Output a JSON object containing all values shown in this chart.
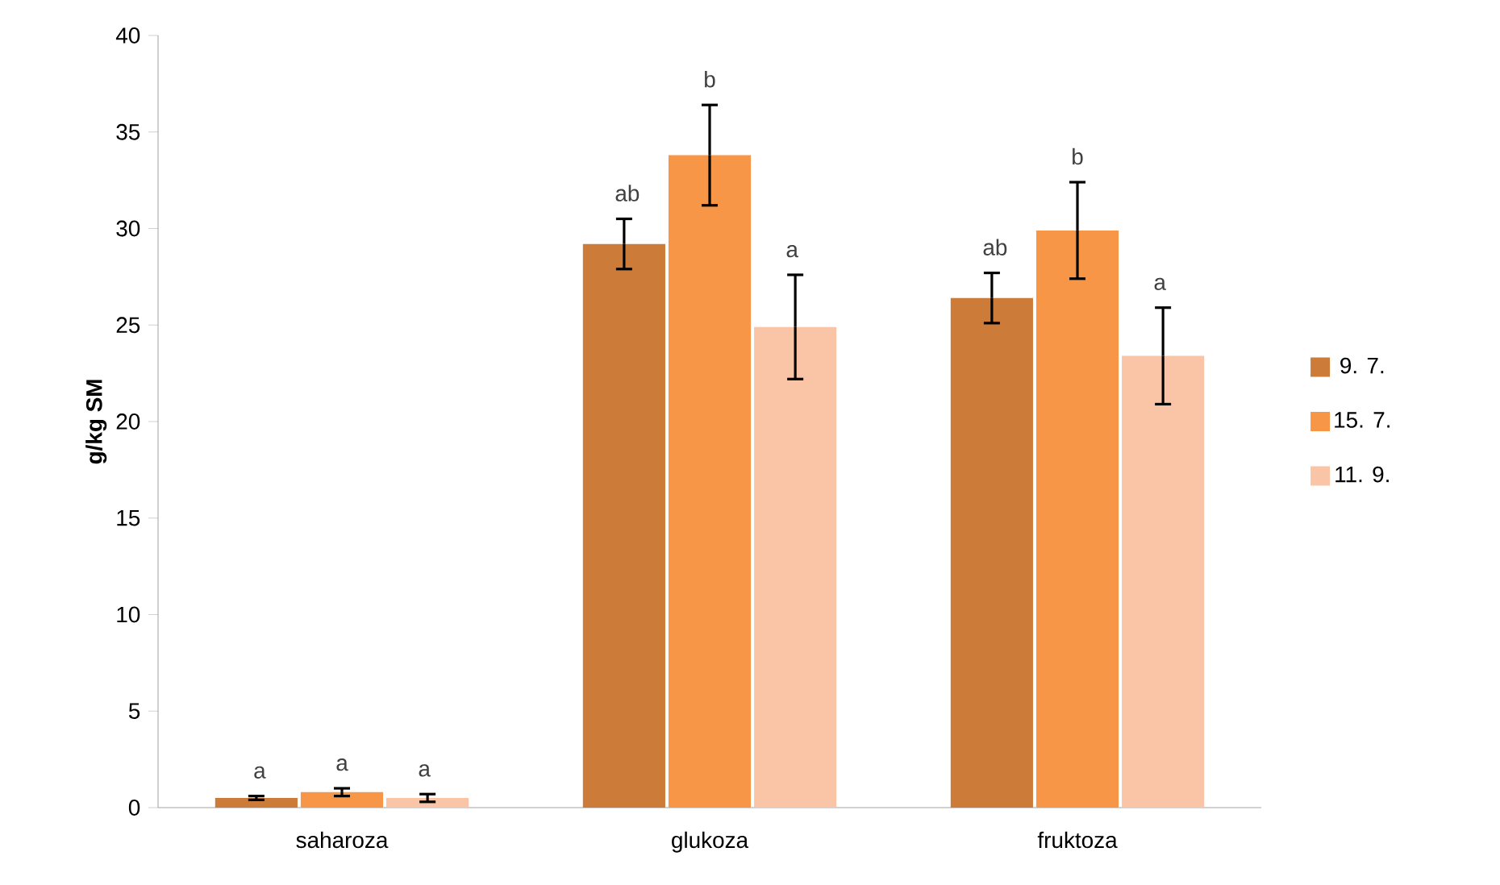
{
  "chart_data": {
    "type": "bar",
    "ylabel": "g/kg SM",
    "categories": [
      "saharoza",
      "glukoza",
      "fruktoza"
    ],
    "series": [
      {
        "name": "9. 7.",
        "color": "#cc7b38",
        "values": [
          0.5,
          29.2,
          26.4
        ],
        "errors": [
          0.1,
          1.3,
          1.3
        ]
      },
      {
        "name": "15. 7.",
        "color": "#f79646",
        "values": [
          0.8,
          33.8,
          29.9
        ],
        "errors": [
          0.2,
          2.6,
          2.5
        ]
      },
      {
        "name": "11. 9.",
        "color": "#fac4a6",
        "values": [
          0.5,
          24.9,
          23.4
        ],
        "errors": [
          0.2,
          2.7,
          2.5
        ]
      }
    ],
    "ylim": [
      0,
      40
    ],
    "yticks": [
      0,
      5,
      10,
      15,
      20,
      25,
      30,
      35,
      40
    ],
    "grid": false,
    "legend": "right",
    "annotations": [
      "a",
      "a",
      "a",
      "ab",
      "b",
      "a",
      "ab",
      "b",
      "a"
    ]
  }
}
